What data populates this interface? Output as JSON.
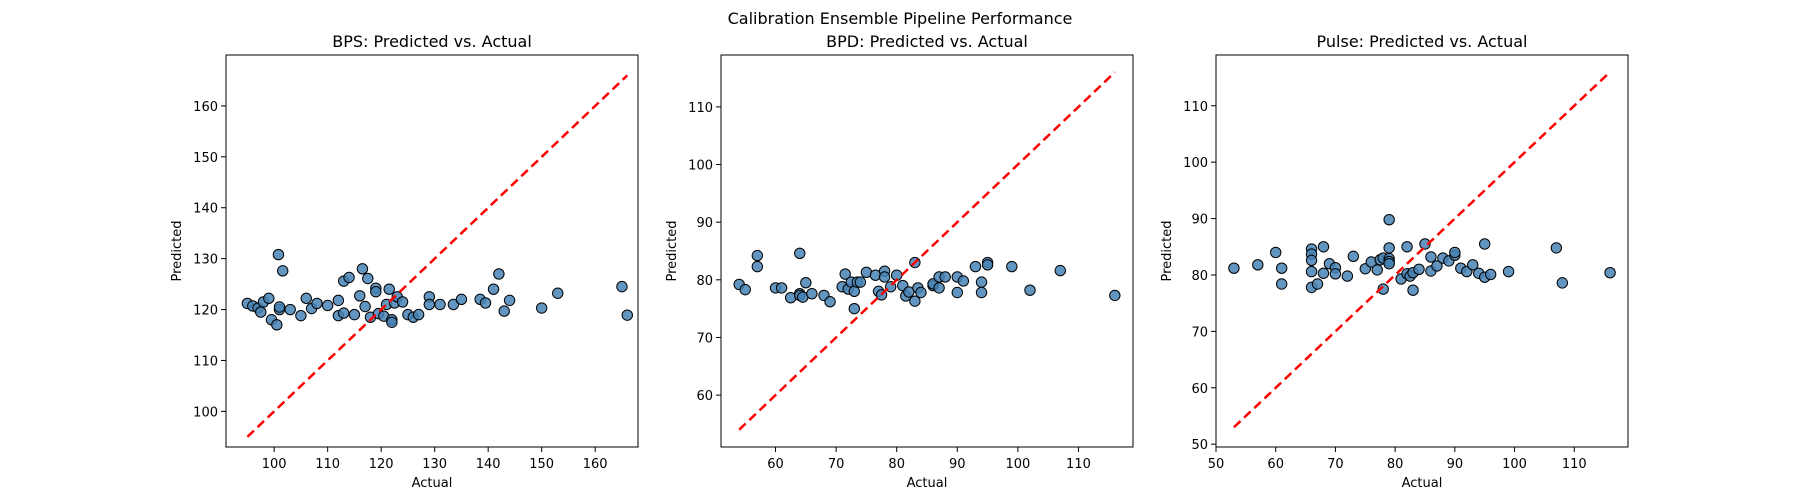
{
  "figure": {
    "suptitle": "Calibration Ensemble Pipeline Performance"
  },
  "colors": {
    "point_fill": "#4682b4",
    "point_edge": "#000000",
    "reference_line": "#ff0000",
    "axes": "#000000",
    "background": "#ffffff"
  },
  "chart_data": [
    {
      "type": "scatter",
      "title": "BPS: Predicted vs. Actual",
      "xlabel": "Actual",
      "ylabel": "Predicted",
      "xlim": [
        91,
        168
      ],
      "ylim": [
        93,
        170
      ],
      "xticks": [
        100,
        110,
        120,
        130,
        140,
        150,
        160
      ],
      "yticks": [
        100,
        110,
        120,
        130,
        140,
        150,
        160
      ],
      "reference_line": {
        "from": [
          95,
          95
        ],
        "to": [
          166,
          166
        ],
        "style": "dashed"
      },
      "grid": false,
      "points": [
        [
          95,
          121.2
        ],
        [
          96,
          120.7
        ],
        [
          97,
          120.3
        ],
        [
          97.5,
          119.5
        ],
        [
          98,
          121.5
        ],
        [
          99,
          122.2
        ],
        [
          99.5,
          118
        ],
        [
          100.5,
          117
        ],
        [
          101,
          120
        ],
        [
          101,
          120.5
        ],
        [
          100.8,
          130.8
        ],
        [
          101.6,
          127.6
        ],
        [
          103,
          120
        ],
        [
          105,
          118.8
        ],
        [
          106,
          122.2
        ],
        [
          107,
          120.2
        ],
        [
          108,
          121.2
        ],
        [
          110,
          120.8
        ],
        [
          112,
          121.8
        ],
        [
          112,
          118.8
        ],
        [
          113,
          125.6
        ],
        [
          113,
          119.3
        ],
        [
          114,
          126.3
        ],
        [
          115,
          119
        ],
        [
          116,
          122.7
        ],
        [
          116.5,
          128
        ],
        [
          117,
          120.6
        ],
        [
          117.5,
          126.1
        ],
        [
          118,
          118.5
        ],
        [
          119,
          124.2
        ],
        [
          119,
          123.5
        ],
        [
          119.5,
          119.2
        ],
        [
          120.5,
          118.7
        ],
        [
          121,
          121
        ],
        [
          121.5,
          124
        ],
        [
          122,
          118
        ],
        [
          122,
          117.5
        ],
        [
          122.5,
          121.3
        ],
        [
          123,
          122.5
        ],
        [
          124,
          121.5
        ],
        [
          125,
          119
        ],
        [
          126,
          118.5
        ],
        [
          127,
          119
        ],
        [
          129,
          122.5
        ],
        [
          129,
          121
        ],
        [
          131,
          121
        ],
        [
          133.5,
          121
        ],
        [
          135,
          122
        ],
        [
          138.5,
          122
        ],
        [
          139.5,
          121.3
        ],
        [
          141,
          124
        ],
        [
          142,
          127
        ],
        [
          143,
          119.7
        ],
        [
          144,
          121.8
        ],
        [
          150,
          120.3
        ],
        [
          153,
          123.2
        ],
        [
          165,
          124.5
        ],
        [
          166,
          118.9
        ]
      ]
    },
    {
      "type": "scatter",
      "title": "BPD: Predicted vs. Actual",
      "xlabel": "Actual",
      "ylabel": "Predicted",
      "xlim": [
        51,
        119
      ],
      "ylim": [
        51,
        119
      ],
      "xticks": [
        60,
        70,
        80,
        90,
        100,
        110
      ],
      "yticks": [
        60,
        70,
        80,
        90,
        100,
        110
      ],
      "reference_line": {
        "from": [
          54,
          54
        ],
        "to": [
          116,
          116
        ],
        "style": "dashed"
      },
      "grid": false,
      "points": [
        [
          54,
          79.2
        ],
        [
          55,
          78.3
        ],
        [
          57,
          84.2
        ],
        [
          57,
          82.3
        ],
        [
          60,
          78.6
        ],
        [
          61,
          78.6
        ],
        [
          62.5,
          76.9
        ],
        [
          64,
          84.6
        ],
        [
          64,
          77.6
        ],
        [
          64,
          77.3
        ],
        [
          64.5,
          77
        ],
        [
          65,
          79.5
        ],
        [
          66,
          77.6
        ],
        [
          68,
          77.3
        ],
        [
          69,
          76.2
        ],
        [
          71,
          78.8
        ],
        [
          71.5,
          81
        ],
        [
          72,
          78.4
        ],
        [
          72.5,
          79.6
        ],
        [
          73,
          75
        ],
        [
          73,
          78
        ],
        [
          73.5,
          79.6
        ],
        [
          74,
          79.6
        ],
        [
          75,
          81.3
        ],
        [
          76.5,
          80.8
        ],
        [
          77,
          78
        ],
        [
          77.5,
          77.4
        ],
        [
          78,
          81.5
        ],
        [
          78,
          80.5
        ],
        [
          79,
          78.8
        ],
        [
          80,
          80.8
        ],
        [
          81,
          79
        ],
        [
          81.5,
          77.2
        ],
        [
          82,
          77.9
        ],
        [
          83,
          83
        ],
        [
          83,
          76.3
        ],
        [
          83.5,
          78.6
        ],
        [
          84,
          77.8
        ],
        [
          86,
          79
        ],
        [
          86,
          79.3
        ],
        [
          87,
          80.5
        ],
        [
          87,
          78.6
        ],
        [
          88,
          80.5
        ],
        [
          90,
          80.5
        ],
        [
          90,
          77.8
        ],
        [
          91,
          79.8
        ],
        [
          93,
          82.3
        ],
        [
          94,
          79.6
        ],
        [
          94,
          77.8
        ],
        [
          95,
          83
        ],
        [
          95,
          82.6
        ],
        [
          99,
          82.3
        ],
        [
          102,
          78.2
        ],
        [
          107,
          81.6
        ],
        [
          116,
          77.3
        ]
      ]
    },
    {
      "type": "scatter",
      "title": "Pulse: Predicted vs. Actual",
      "xlabel": "Actual",
      "ylabel": "Predicted",
      "xlim": [
        50,
        119
      ],
      "ylim": [
        49.5,
        119
      ],
      "xticks": [
        50,
        60,
        70,
        80,
        90,
        100,
        110
      ],
      "yticks": [
        50,
        60,
        70,
        80,
        90,
        100,
        110
      ],
      "reference_line": {
        "from": [
          53,
          53
        ],
        "to": [
          116,
          116
        ],
        "style": "dashed"
      },
      "grid": false,
      "points": [
        [
          53,
          81.2
        ],
        [
          57,
          81.8
        ],
        [
          60,
          84
        ],
        [
          61,
          81.2
        ],
        [
          61,
          78.4
        ],
        [
          66,
          84.6
        ],
        [
          66,
          83.7
        ],
        [
          66,
          82.6
        ],
        [
          66,
          80.6
        ],
        [
          66,
          77.8
        ],
        [
          67,
          78.4
        ],
        [
          68,
          85
        ],
        [
          68,
          80.3
        ],
        [
          69,
          82
        ],
        [
          70,
          81.3
        ],
        [
          70,
          80.2
        ],
        [
          72,
          79.8
        ],
        [
          73,
          83.3
        ],
        [
          75,
          81.1
        ],
        [
          76,
          82.3
        ],
        [
          77,
          80.9
        ],
        [
          77.5,
          82.7
        ],
        [
          78,
          83
        ],
        [
          78,
          77.5
        ],
        [
          79,
          82.9
        ],
        [
          79,
          82.4
        ],
        [
          79,
          89.8
        ],
        [
          79,
          84.8
        ],
        [
          79,
          82
        ],
        [
          81,
          79.3
        ],
        [
          82,
          85
        ],
        [
          82,
          80.2
        ],
        [
          82.5,
          79.8
        ],
        [
          83,
          77.3
        ],
        [
          83,
          80.4
        ],
        [
          84,
          81
        ],
        [
          85,
          85.5
        ],
        [
          86,
          83.2
        ],
        [
          86,
          80.7
        ],
        [
          87,
          81.6
        ],
        [
          88,
          83
        ],
        [
          89,
          82.5
        ],
        [
          90,
          83.5
        ],
        [
          90,
          84
        ],
        [
          91,
          81.2
        ],
        [
          92,
          80.6
        ],
        [
          93,
          81.8
        ],
        [
          94,
          80.3
        ],
        [
          95,
          85.5
        ],
        [
          95,
          79.6
        ],
        [
          96,
          80.1
        ],
        [
          99,
          80.6
        ],
        [
          107,
          84.8
        ],
        [
          108,
          78.6
        ],
        [
          116,
          80.4
        ]
      ]
    }
  ]
}
